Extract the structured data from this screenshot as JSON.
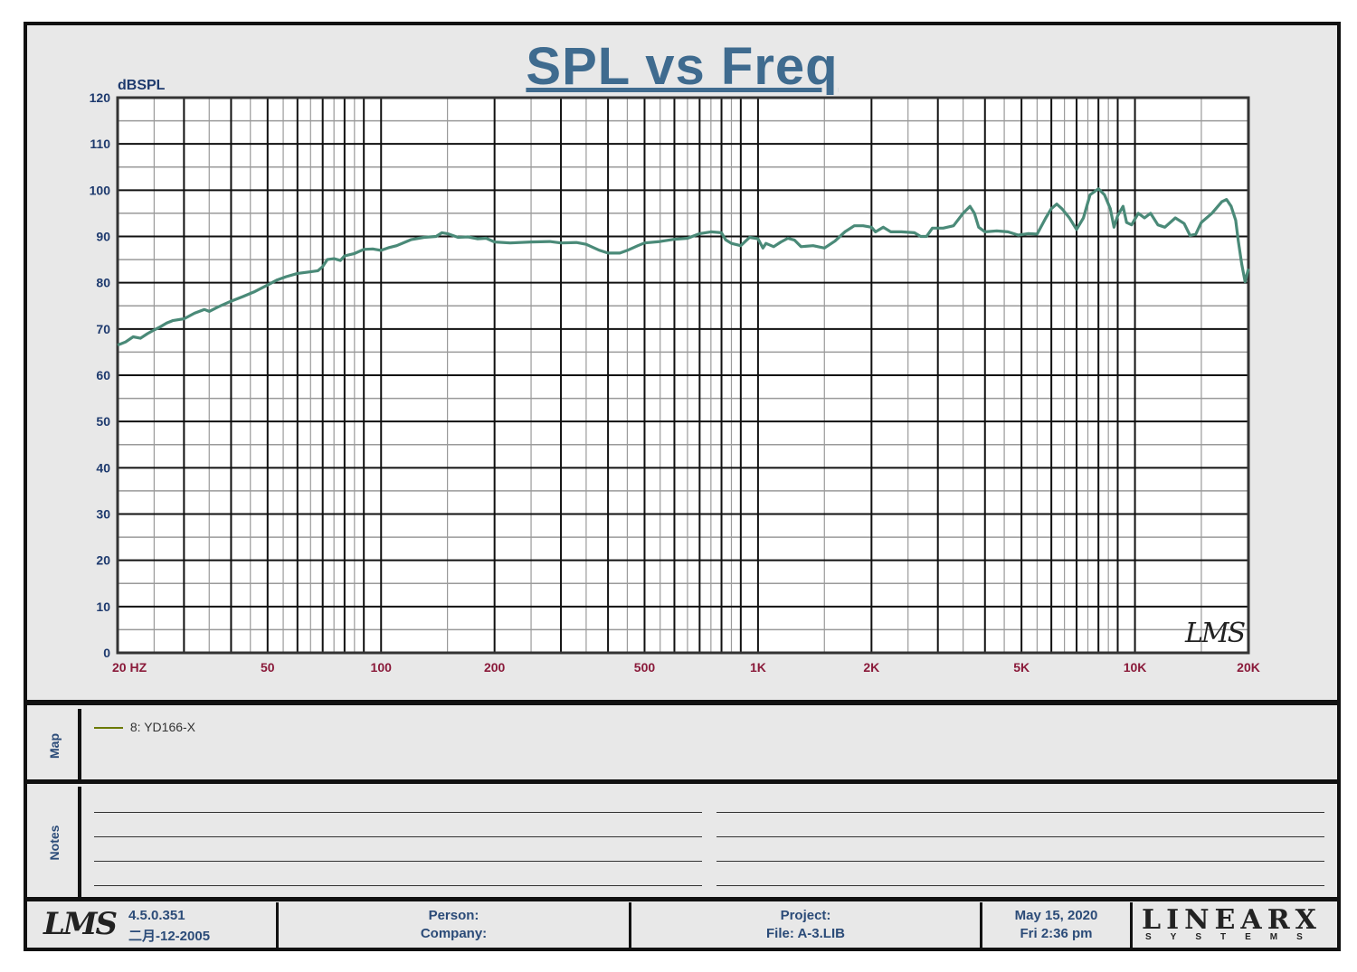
{
  "colors": {
    "curve": "#4a8a78",
    "title": "#3f6b8f",
    "x_tick_text": "#8a1a3a",
    "y_tick_text": "#1e3a6e",
    "legend_swatch": "#6b7a00",
    "grid_major": "#111111",
    "grid_minor": "#9a9a9a"
  },
  "chart_data": {
    "type": "line",
    "title": "SPL vs Freq",
    "ylabel": "dBSPL",
    "xlabel": "",
    "x_scale": "log",
    "xlim": [
      20,
      20000
    ],
    "ylim": [
      0,
      120
    ],
    "grid": true,
    "x_ticks": [
      {
        "value": 20,
        "label": "20  HZ"
      },
      {
        "value": 50,
        "label": "50"
      },
      {
        "value": 100,
        "label": "100"
      },
      {
        "value": 200,
        "label": "200"
      },
      {
        "value": 500,
        "label": "500"
      },
      {
        "value": 1000,
        "label": "1K"
      },
      {
        "value": 2000,
        "label": "2K"
      },
      {
        "value": 5000,
        "label": "5K"
      },
      {
        "value": 10000,
        "label": "10K"
      },
      {
        "value": 20000,
        "label": "20K"
      }
    ],
    "y_ticks": [
      "0",
      "10",
      "20",
      "30",
      "40",
      "50",
      "60",
      "70",
      "80",
      "90",
      "100",
      "110",
      "120"
    ],
    "series": [
      {
        "name": "8: YD166-X",
        "points": [
          [
            20,
            66.5
          ],
          [
            21,
            67.2
          ],
          [
            22,
            68.3
          ],
          [
            23,
            68.0
          ],
          [
            24,
            69.0
          ],
          [
            25,
            69.8
          ],
          [
            26,
            70.5
          ],
          [
            27,
            71.3
          ],
          [
            28,
            71.8
          ],
          [
            30,
            72.2
          ],
          [
            32,
            73.4
          ],
          [
            34,
            74.2
          ],
          [
            35,
            73.8
          ],
          [
            37,
            74.8
          ],
          [
            40,
            76.0
          ],
          [
            43,
            77.0
          ],
          [
            46,
            78.0
          ],
          [
            50,
            79.5
          ],
          [
            53,
            80.6
          ],
          [
            56,
            81.3
          ],
          [
            60,
            82.0
          ],
          [
            64,
            82.3
          ],
          [
            68,
            82.6
          ],
          [
            70,
            83.5
          ],
          [
            72,
            85.0
          ],
          [
            75,
            85.2
          ],
          [
            78,
            84.8
          ],
          [
            80,
            85.8
          ],
          [
            85,
            86.3
          ],
          [
            90,
            87.2
          ],
          [
            95,
            87.3
          ],
          [
            100,
            87.0
          ],
          [
            105,
            87.6
          ],
          [
            110,
            88.0
          ],
          [
            120,
            89.3
          ],
          [
            130,
            89.8
          ],
          [
            140,
            90.0
          ],
          [
            145,
            90.8
          ],
          [
            150,
            90.6
          ],
          [
            160,
            89.8
          ],
          [
            170,
            89.9
          ],
          [
            180,
            89.5
          ],
          [
            190,
            89.6
          ],
          [
            200,
            88.8
          ],
          [
            220,
            88.6
          ],
          [
            250,
            88.8
          ],
          [
            280,
            88.9
          ],
          [
            300,
            88.6
          ],
          [
            330,
            88.7
          ],
          [
            350,
            88.3
          ],
          [
            380,
            87.0
          ],
          [
            400,
            86.4
          ],
          [
            430,
            86.4
          ],
          [
            450,
            87.0
          ],
          [
            480,
            88.0
          ],
          [
            500,
            88.6
          ],
          [
            550,
            88.9
          ],
          [
            600,
            89.4
          ],
          [
            650,
            89.6
          ],
          [
            700,
            90.6
          ],
          [
            750,
            91.0
          ],
          [
            800,
            90.8
          ],
          [
            820,
            89.3
          ],
          [
            850,
            88.5
          ],
          [
            900,
            88.0
          ],
          [
            950,
            89.8
          ],
          [
            1000,
            89.5
          ],
          [
            1030,
            87.5
          ],
          [
            1050,
            88.5
          ],
          [
            1100,
            87.8
          ],
          [
            1150,
            88.8
          ],
          [
            1200,
            89.6
          ],
          [
            1250,
            89.2
          ],
          [
            1300,
            87.8
          ],
          [
            1400,
            88.0
          ],
          [
            1500,
            87.5
          ],
          [
            1600,
            89.0
          ],
          [
            1700,
            91.0
          ],
          [
            1800,
            92.3
          ],
          [
            1900,
            92.3
          ],
          [
            2000,
            92.0
          ],
          [
            2050,
            91.0
          ],
          [
            2150,
            92.0
          ],
          [
            2250,
            91.0
          ],
          [
            2400,
            91.0
          ],
          [
            2600,
            90.8
          ],
          [
            2700,
            90.0
          ],
          [
            2800,
            90.0
          ],
          [
            2900,
            91.8
          ],
          [
            3100,
            91.8
          ],
          [
            3300,
            92.3
          ],
          [
            3500,
            95.0
          ],
          [
            3650,
            96.5
          ],
          [
            3750,
            95.0
          ],
          [
            3850,
            92.0
          ],
          [
            4000,
            91.0
          ],
          [
            4300,
            91.2
          ],
          [
            4600,
            91.0
          ],
          [
            4900,
            90.3
          ],
          [
            5200,
            90.6
          ],
          [
            5500,
            90.5
          ],
          [
            5800,
            94.0
          ],
          [
            6000,
            96.0
          ],
          [
            6200,
            97.0
          ],
          [
            6400,
            96.0
          ],
          [
            6700,
            94.0
          ],
          [
            7000,
            91.5
          ],
          [
            7300,
            94.0
          ],
          [
            7600,
            99.0
          ],
          [
            8000,
            100.3
          ],
          [
            8300,
            99.0
          ],
          [
            8600,
            96.0
          ],
          [
            8800,
            92.0
          ],
          [
            9000,
            94.5
          ],
          [
            9300,
            96.5
          ],
          [
            9500,
            93.0
          ],
          [
            9800,
            92.5
          ],
          [
            10200,
            95.0
          ],
          [
            10600,
            94.0
          ],
          [
            11000,
            95.0
          ],
          [
            11500,
            92.5
          ],
          [
            12000,
            92.0
          ],
          [
            12800,
            94.0
          ],
          [
            13500,
            92.8
          ],
          [
            14000,
            90.2
          ],
          [
            14500,
            90.5
          ],
          [
            15000,
            93.0
          ],
          [
            16000,
            95.0
          ],
          [
            17000,
            97.5
          ],
          [
            17500,
            98.0
          ],
          [
            18000,
            96.5
          ],
          [
            18500,
            93.5
          ],
          [
            18800,
            89.0
          ],
          [
            19200,
            84.0
          ],
          [
            19600,
            80.2
          ],
          [
            20000,
            83.0
          ]
        ]
      }
    ]
  },
  "watermark": "LMS",
  "legend": {
    "entry": "8: YD166-X"
  },
  "panels": {
    "map_label": "Map",
    "notes_label": "Notes"
  },
  "footer": {
    "logo": "LMS",
    "version": "4.5.0.351",
    "build_date": "二月-12-2005",
    "person": "Person:",
    "company": "Company:",
    "project": "Project:",
    "file": "File: A-3.LIB",
    "date": "May 15, 2020",
    "time": "Fri  2:36 pm",
    "brand": "LINEARX",
    "brand_sub": "SYSTEMS"
  }
}
